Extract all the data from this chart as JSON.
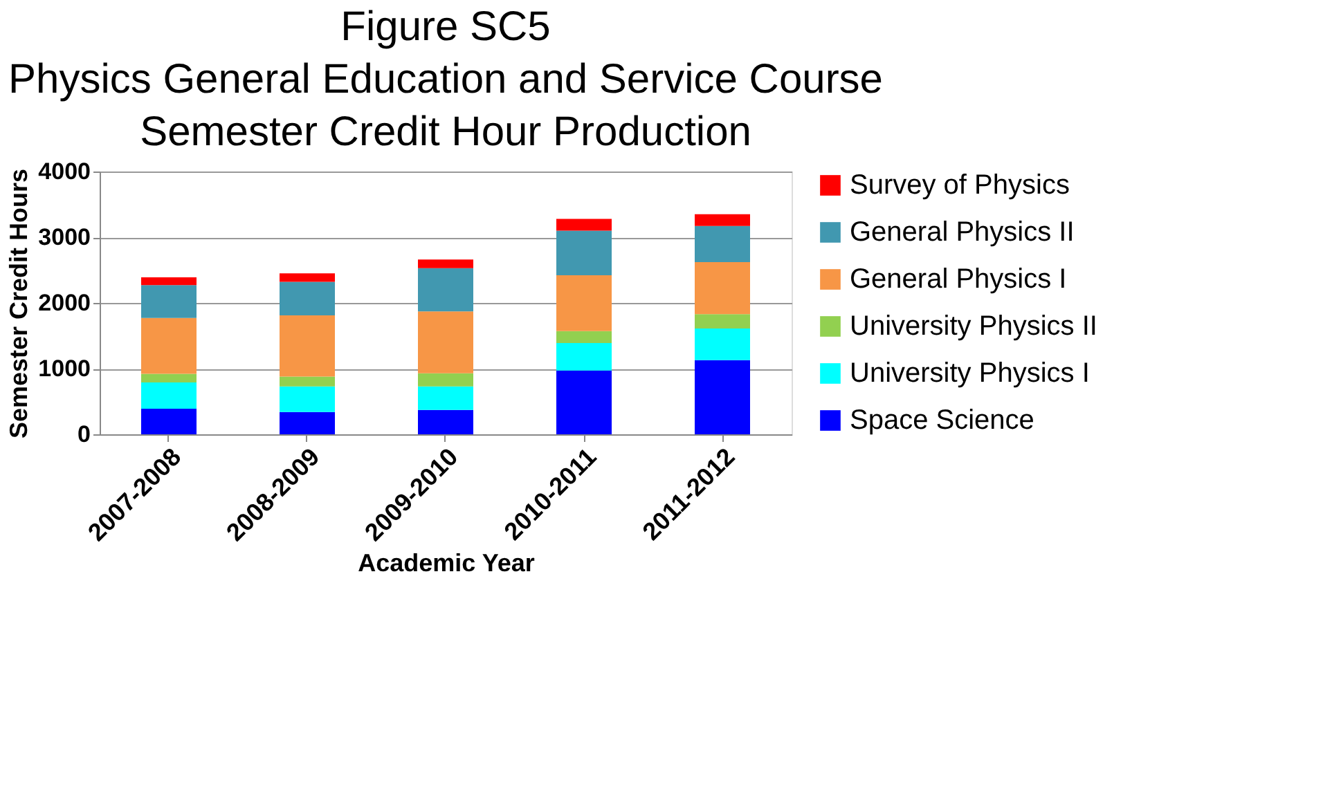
{
  "chart_data": {
    "type": "bar",
    "stacked": true,
    "title": [
      "Figure SC5",
      "Physics General Education and Service Course",
      "Semester Credit Hour Production"
    ],
    "xlabel": "Academic Year",
    "ylabel": "Semester Credit Hours",
    "categories": [
      "2007-2008",
      "2008-2009",
      "2009-2010",
      "2010-2011",
      "2011-2012"
    ],
    "series": [
      {
        "name": "Space Science",
        "color": "#0000ff",
        "values": [
          390,
          340,
          370,
          970,
          1130
        ]
      },
      {
        "name": "University Physics I",
        "color": "#00ffff",
        "values": [
          400,
          390,
          360,
          420,
          480
        ]
      },
      {
        "name": "University Physics II",
        "color": "#92d050",
        "values": [
          130,
          150,
          200,
          180,
          220
        ]
      },
      {
        "name": "General Physics I",
        "color": "#f79646",
        "values": [
          850,
          930,
          940,
          850,
          790
        ]
      },
      {
        "name": "General Physics II",
        "color": "#4198b0",
        "values": [
          500,
          510,
          660,
          680,
          550
        ]
      },
      {
        "name": "Survey of Physics",
        "color": "#ff0000",
        "values": [
          120,
          130,
          130,
          180,
          180
        ]
      }
    ],
    "ylim": [
      0,
      4000
    ],
    "yticks": [
      0,
      1000,
      2000,
      3000,
      4000
    ],
    "grid": "y",
    "legend": "right"
  }
}
